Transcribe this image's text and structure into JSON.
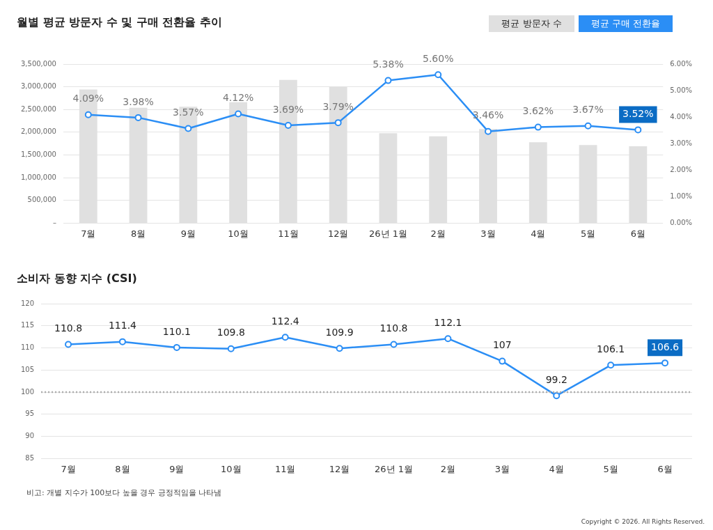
{
  "chart_data": [
    {
      "type": "bar",
      "title": "월별 평균 방문자 수 및 구매 전환율 추이",
      "categories": [
        "7월",
        "8월",
        "9월",
        "10월",
        "11월",
        "12월",
        "26년 1월",
        "2월",
        "3월",
        "4월",
        "5월",
        "6월"
      ],
      "series": [
        {
          "name": "평균 방문자 수",
          "type": "bar",
          "color": "#e0e0e0",
          "values": [
            2940000,
            2540000,
            2560000,
            2660000,
            3150000,
            3000000,
            1980000,
            1910000,
            2070000,
            1780000,
            1720000,
            1690000
          ]
        },
        {
          "name": "평균 구매 전환율",
          "type": "line",
          "axis": "y2",
          "color": "#2b8ef5",
          "values": [
            4.09,
            3.98,
            3.57,
            4.12,
            3.69,
            3.79,
            5.38,
            5.6,
            3.46,
            3.62,
            3.67,
            3.52
          ],
          "value_labels": [
            "4.09%",
            "3.98%",
            "3.57%",
            "4.12%",
            "3.69%",
            "3.79%",
            "5.38%",
            "5.60%",
            "3.46%",
            "3.62%",
            "3.67%",
            "3.52%"
          ]
        }
      ],
      "ylim": [
        0,
        3500000
      ],
      "yticks": [
        {
          "value": 0,
          "label": "–"
        },
        {
          "value": 500000,
          "label": "500,000"
        },
        {
          "value": 1000000,
          "label": "1,000,000"
        },
        {
          "value": 1500000,
          "label": "1,500,000"
        },
        {
          "value": 2000000,
          "label": "2,000,000"
        },
        {
          "value": 2500000,
          "label": "2,500,000"
        },
        {
          "value": 3000000,
          "label": "3,000,000"
        },
        {
          "value": 3500000,
          "label": "3,500,000"
        }
      ],
      "y2lim": [
        0,
        6
      ],
      "y2ticks": [
        {
          "value": 0,
          "label": "0.00%"
        },
        {
          "value": 1,
          "label": "1.00%"
        },
        {
          "value": 2,
          "label": "2.00%"
        },
        {
          "value": 3,
          "label": "3.00%"
        },
        {
          "value": 4,
          "label": "4.00%"
        },
        {
          "value": 5,
          "label": "5.00%"
        },
        {
          "value": 6,
          "label": "6.00%"
        }
      ],
      "grid": "y",
      "legend": "top right",
      "marker": "circle",
      "line_style": "solid"
    },
    {
      "type": "line",
      "title": "소비자 동향 지수 (CSI)",
      "categories": [
        "7월",
        "8월",
        "9월",
        "10월",
        "11월",
        "12월",
        "26년 1월",
        "2월",
        "3월",
        "4월",
        "5월",
        "6월"
      ],
      "series": [
        {
          "color": "#2b8ef5",
          "values": [
            110.8,
            111.4,
            110.1,
            109.8,
            112.4,
            109.9,
            110.8,
            112.1,
            107,
            99.2,
            106.1,
            106.6
          ]
        }
      ],
      "ylim": [
        85,
        120
      ],
      "yticks": [
        85,
        90,
        95,
        100,
        105,
        110,
        115,
        120
      ],
      "ref_lines": [
        {
          "axis": "y",
          "value": 100,
          "color": "#aaaaaa",
          "line_style": "dotted"
        }
      ],
      "grid": "y",
      "marker": "circle",
      "line_style": "solid",
      "data_labels": true,
      "annotations": [
        "비고: 개별 지수가 100보다 높을 경우 긍정적임을 나타냄",
        "Copyright © 2026. All Rights Reserved."
      ]
    }
  ]
}
